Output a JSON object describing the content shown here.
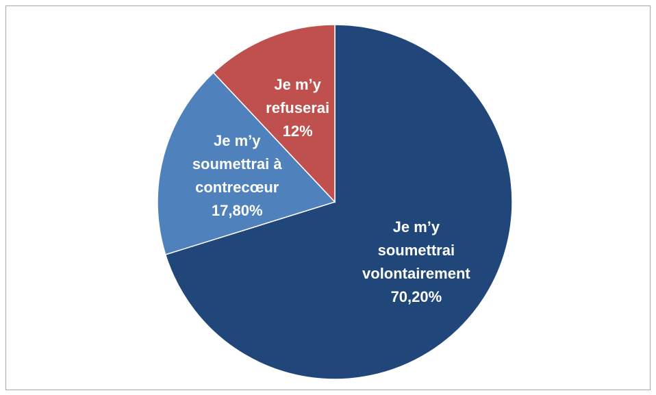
{
  "chart_data": {
    "type": "pie",
    "categories": [
      "Je m’y soumettrai volontairement",
      "Je m’y soumettrai à contrecœur",
      "Je m’y refuserai"
    ],
    "values": [
      70.2,
      17.8,
      12
    ],
    "value_labels": [
      "70,20%",
      "17,80%",
      "12%"
    ],
    "colors": [
      "#21477a",
      "#4f81bd",
      "#c0504d"
    ]
  }
}
